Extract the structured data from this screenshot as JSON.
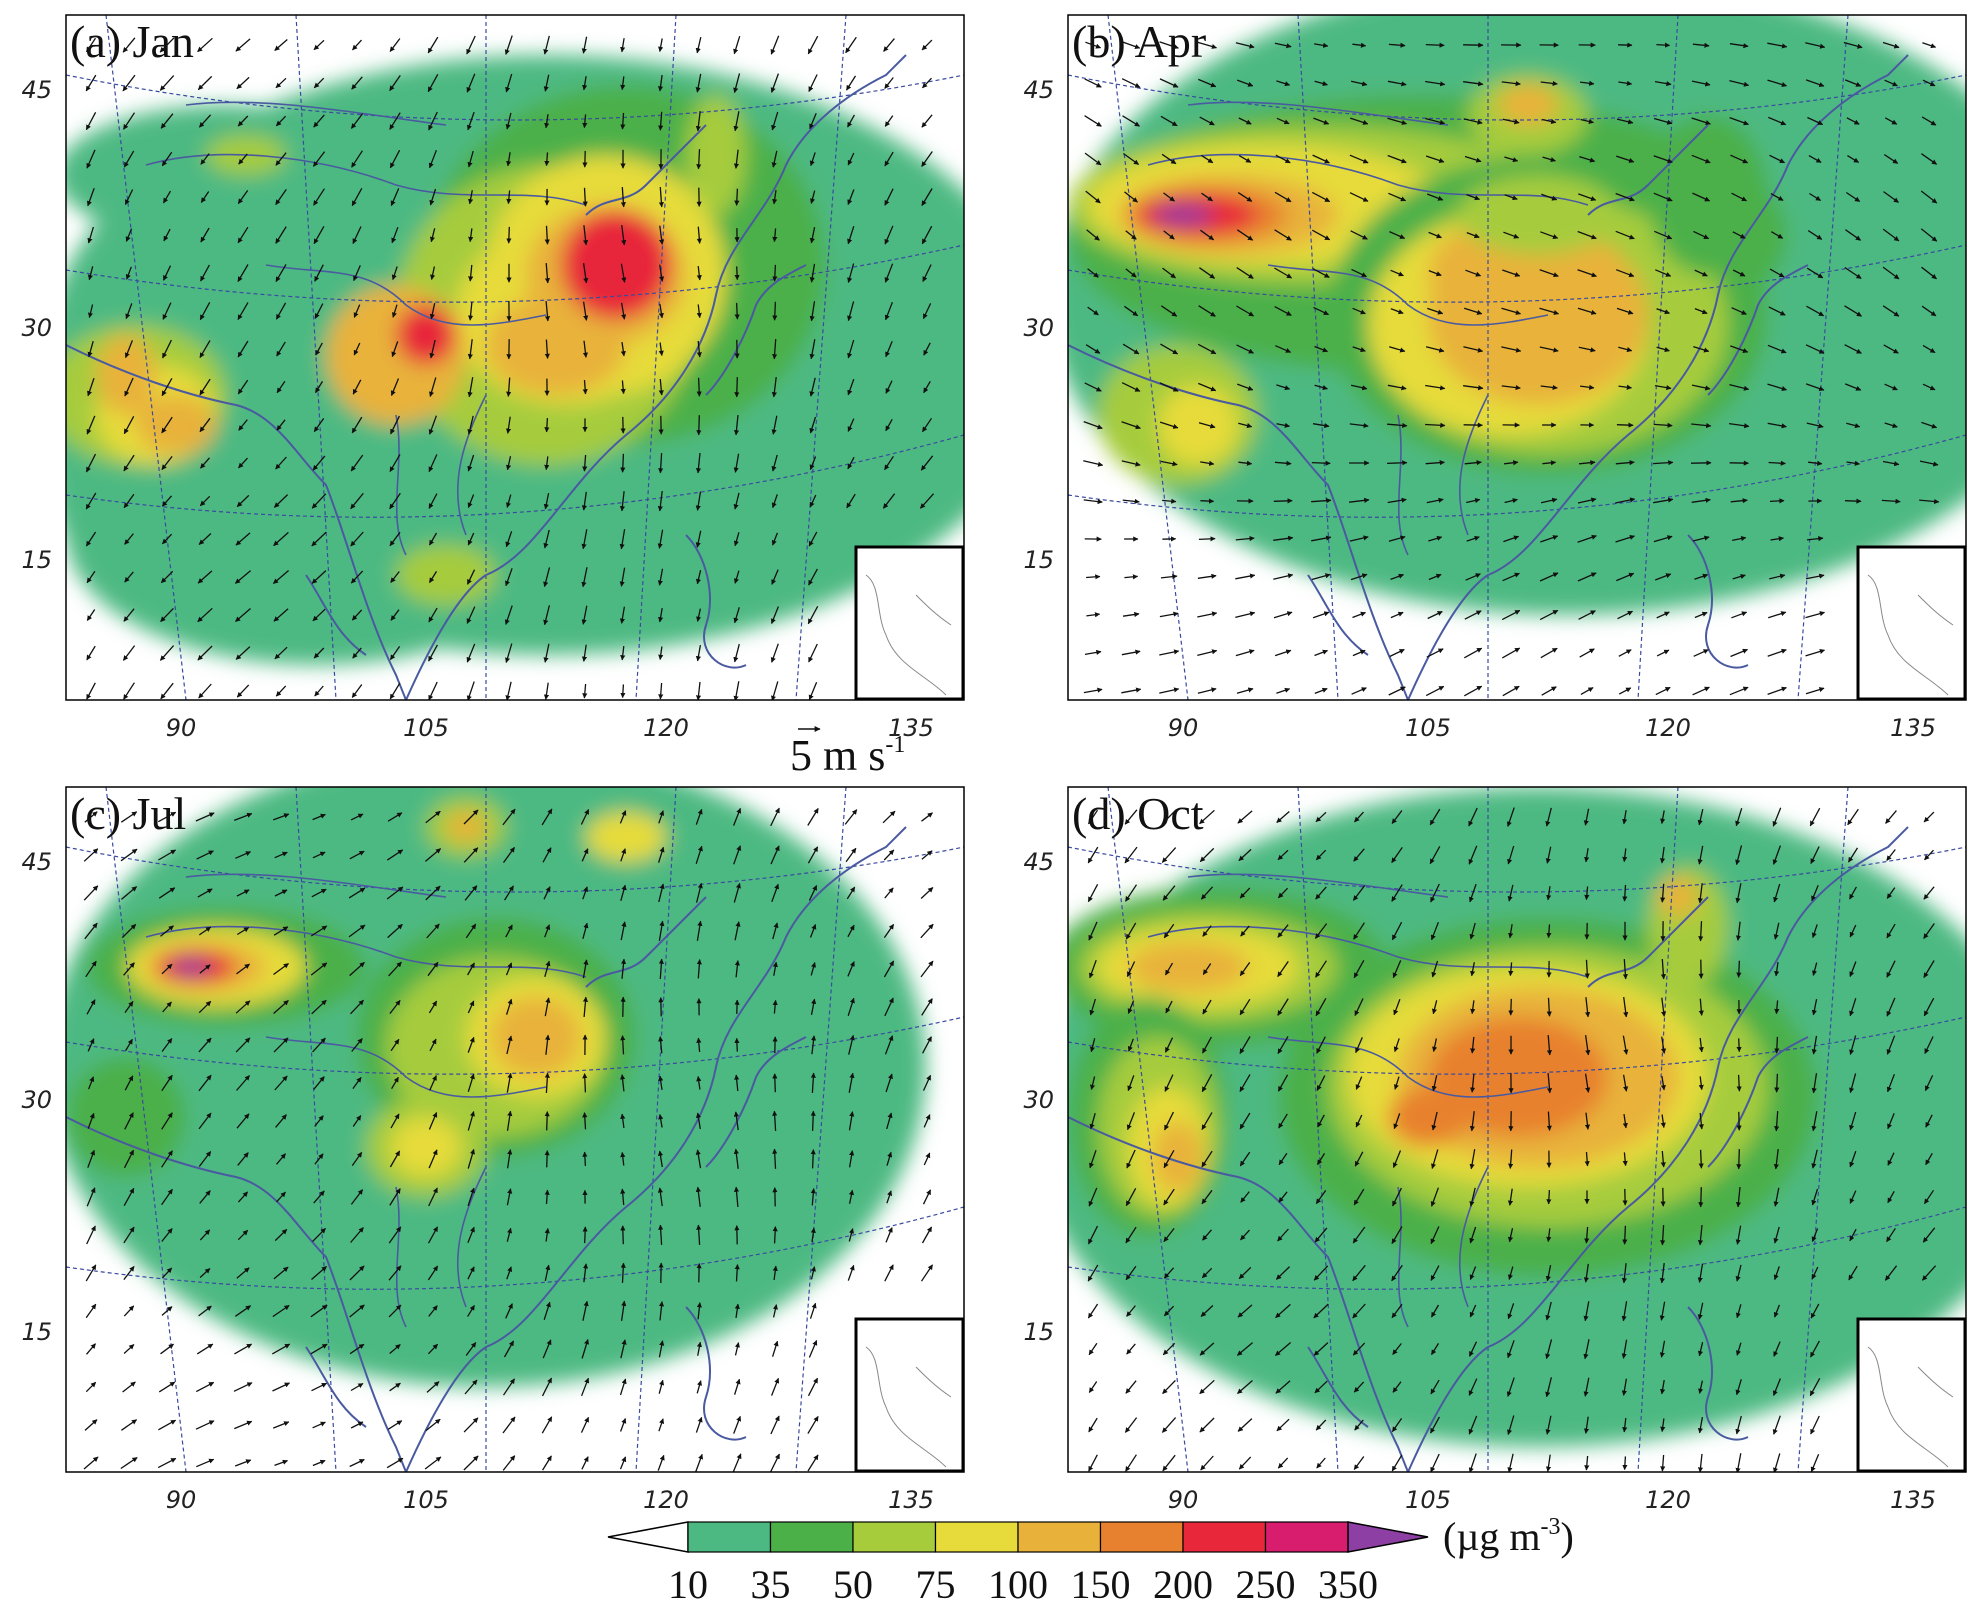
{
  "figure": {
    "panels": [
      {
        "id": "a",
        "label": "(a) Jan",
        "month": "Jan",
        "wind": "northerly"
      },
      {
        "id": "b",
        "label": "(b) Apr",
        "month": "Apr",
        "wind": "westerly"
      },
      {
        "id": "c",
        "label": "(c) Jul",
        "month": "Jul",
        "wind": "southerly"
      },
      {
        "id": "d",
        "label": "(d) Oct",
        "month": "Oct",
        "wind": "northerly"
      }
    ],
    "lat_ticks": [
      "45",
      "30",
      "15"
    ],
    "lon_ticks": [
      "90",
      "105",
      "120",
      "135"
    ],
    "reference_vector": {
      "label": "5 m s",
      "exponent": "-1"
    },
    "colorbar": {
      "levels": [
        "10",
        "35",
        "50",
        "75",
        "100",
        "150",
        "200",
        "250",
        "350"
      ],
      "colors": [
        "#4db982",
        "#4cb048",
        "#a6cc3c",
        "#e6db3a",
        "#e8b23a",
        "#e8812f",
        "#e8283a",
        "#d81c6e",
        "#8e3fa3"
      ],
      "units_prefix": "(µg m",
      "units_exponent": "-3",
      "units_suffix": ")"
    },
    "colors": {
      "coastline": "#4a5aa0",
      "graticule": "#3a4aa0",
      "wind_arrow": "#111111",
      "inset_frame": "#000000"
    }
  }
}
